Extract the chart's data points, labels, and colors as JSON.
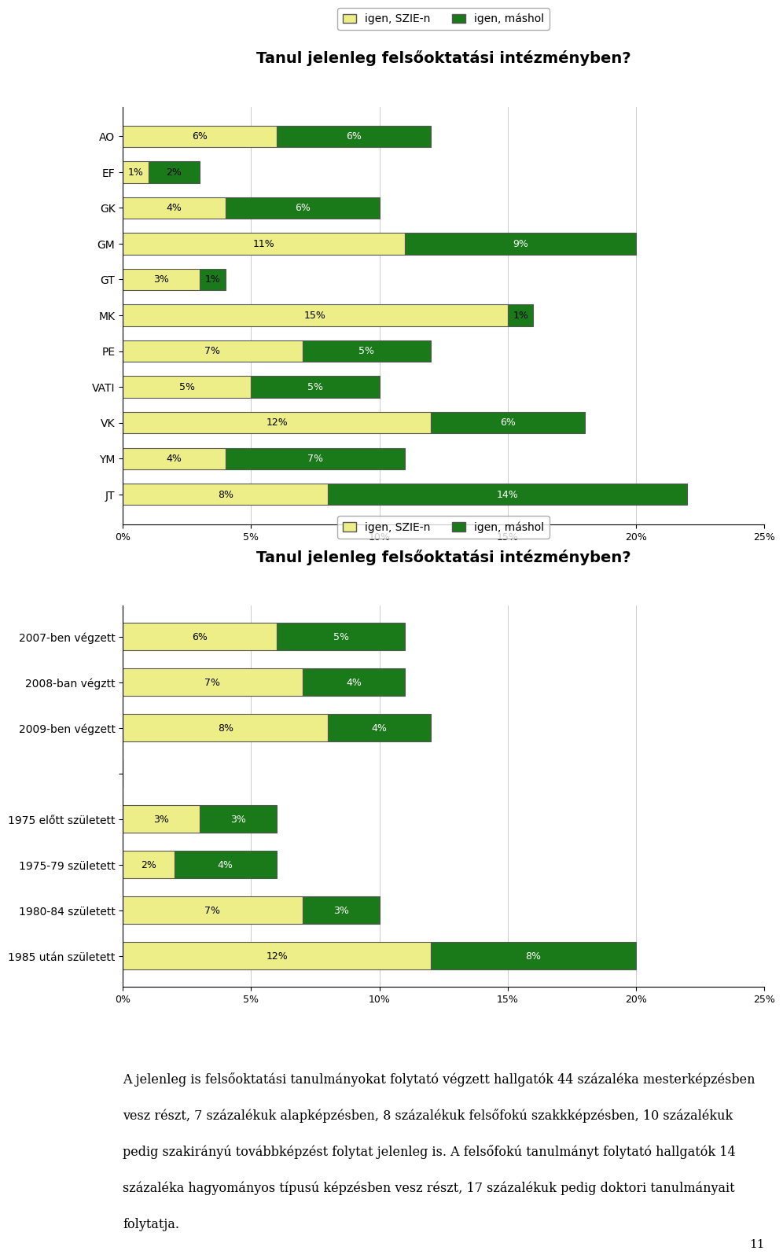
{
  "chart1": {
    "title": "Tanul jelenleg felsőoktatási intézményben?",
    "categories": [
      "AO",
      "EF",
      "GK",
      "GM",
      "GT",
      "MK",
      "PE",
      "VATI",
      "VK",
      "YM",
      "JT"
    ],
    "szie": [
      6,
      1,
      4,
      11,
      3,
      15,
      7,
      5,
      12,
      4,
      8
    ],
    "mashol": [
      6,
      2,
      6,
      9,
      1,
      1,
      5,
      5,
      6,
      7,
      14
    ],
    "xlim": [
      0,
      25
    ],
    "xticks": [
      0,
      5,
      10,
      15,
      20,
      25
    ],
    "xticklabels": [
      "0%",
      "5%",
      "10%",
      "15%",
      "20%",
      "25%"
    ]
  },
  "chart2": {
    "title": "Tanul jelenleg felsőoktatási intézményben?",
    "categories": [
      "2007-ben végzett",
      "2008-ban végztt",
      "2009-ben végzett",
      "",
      "1975 előtt született",
      "1975-79 született",
      "1980-84 született",
      "1985 után született"
    ],
    "szie": [
      6,
      7,
      8,
      0,
      3,
      2,
      7,
      12
    ],
    "mashol": [
      5,
      4,
      4,
      0,
      3,
      4,
      3,
      8
    ],
    "xlim": [
      0,
      25
    ],
    "xticks": [
      0,
      5,
      10,
      15,
      20,
      25
    ],
    "xticklabels": [
      "0%",
      "5%",
      "10%",
      "15%",
      "20%",
      "25%"
    ]
  },
  "legend_szie": "igen, SZIE-n",
  "legend_mashol": "igen, máshol",
  "color_szie": "#EEEE88",
  "color_mashol": "#1a7a1a",
  "bar_edge_color": "#555555",
  "background_color": "#ffffff",
  "text_line1": "A jelenleg is felsőoktatási tanulmányokat folytató végzett hallgatók 44 százaléka mesterképzésben",
  "text_line2": "vesz részt, 7 százalékuk alapképzésben, 8 százalékuk felsőfokú szakkképzésben, 10 százalékuk",
  "text_line3": "pedig szakirányú továbbképzést folytat jelenleg is. A felsőfokú tanulmányt folytató hallgatók 14",
  "text_line4": "százaléka hagyományos típusú képzésben vesz részt, 17 százalékuk pedig doktori tanulmányait",
  "text_line5": "folytatja.",
  "page_number": "11"
}
